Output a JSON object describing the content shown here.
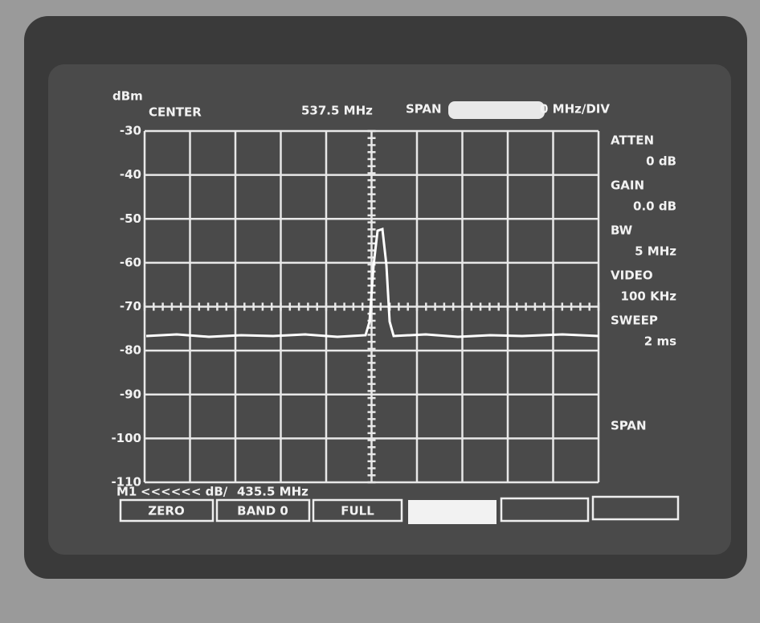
{
  "screen": {
    "header": {
      "center_label": "CENTER",
      "center_value": "537.5 MHz",
      "span_label": "SPAN",
      "span_value": "0 MHz/DIV"
    },
    "unit": "dBm",
    "y_labels": [
      "-30",
      "-40",
      "-50",
      "-60",
      "-70",
      "-80",
      "-90",
      "-100",
      "-110"
    ],
    "side_panel": [
      "ATTEN",
      "0 dB",
      "GAIN",
      "0.0 dB",
      "BW",
      "5 MHz",
      "VIDEO",
      "100 KHz",
      "SWEEP",
      "2 ms"
    ],
    "side_span": "SPAN",
    "marker": {
      "name": "M1",
      "level": "<<<<<< dB/",
      "frequency": "435.5 MHz"
    },
    "softkeys": [
      "ZERO",
      "BAND 0",
      "FULL"
    ]
  }
}
